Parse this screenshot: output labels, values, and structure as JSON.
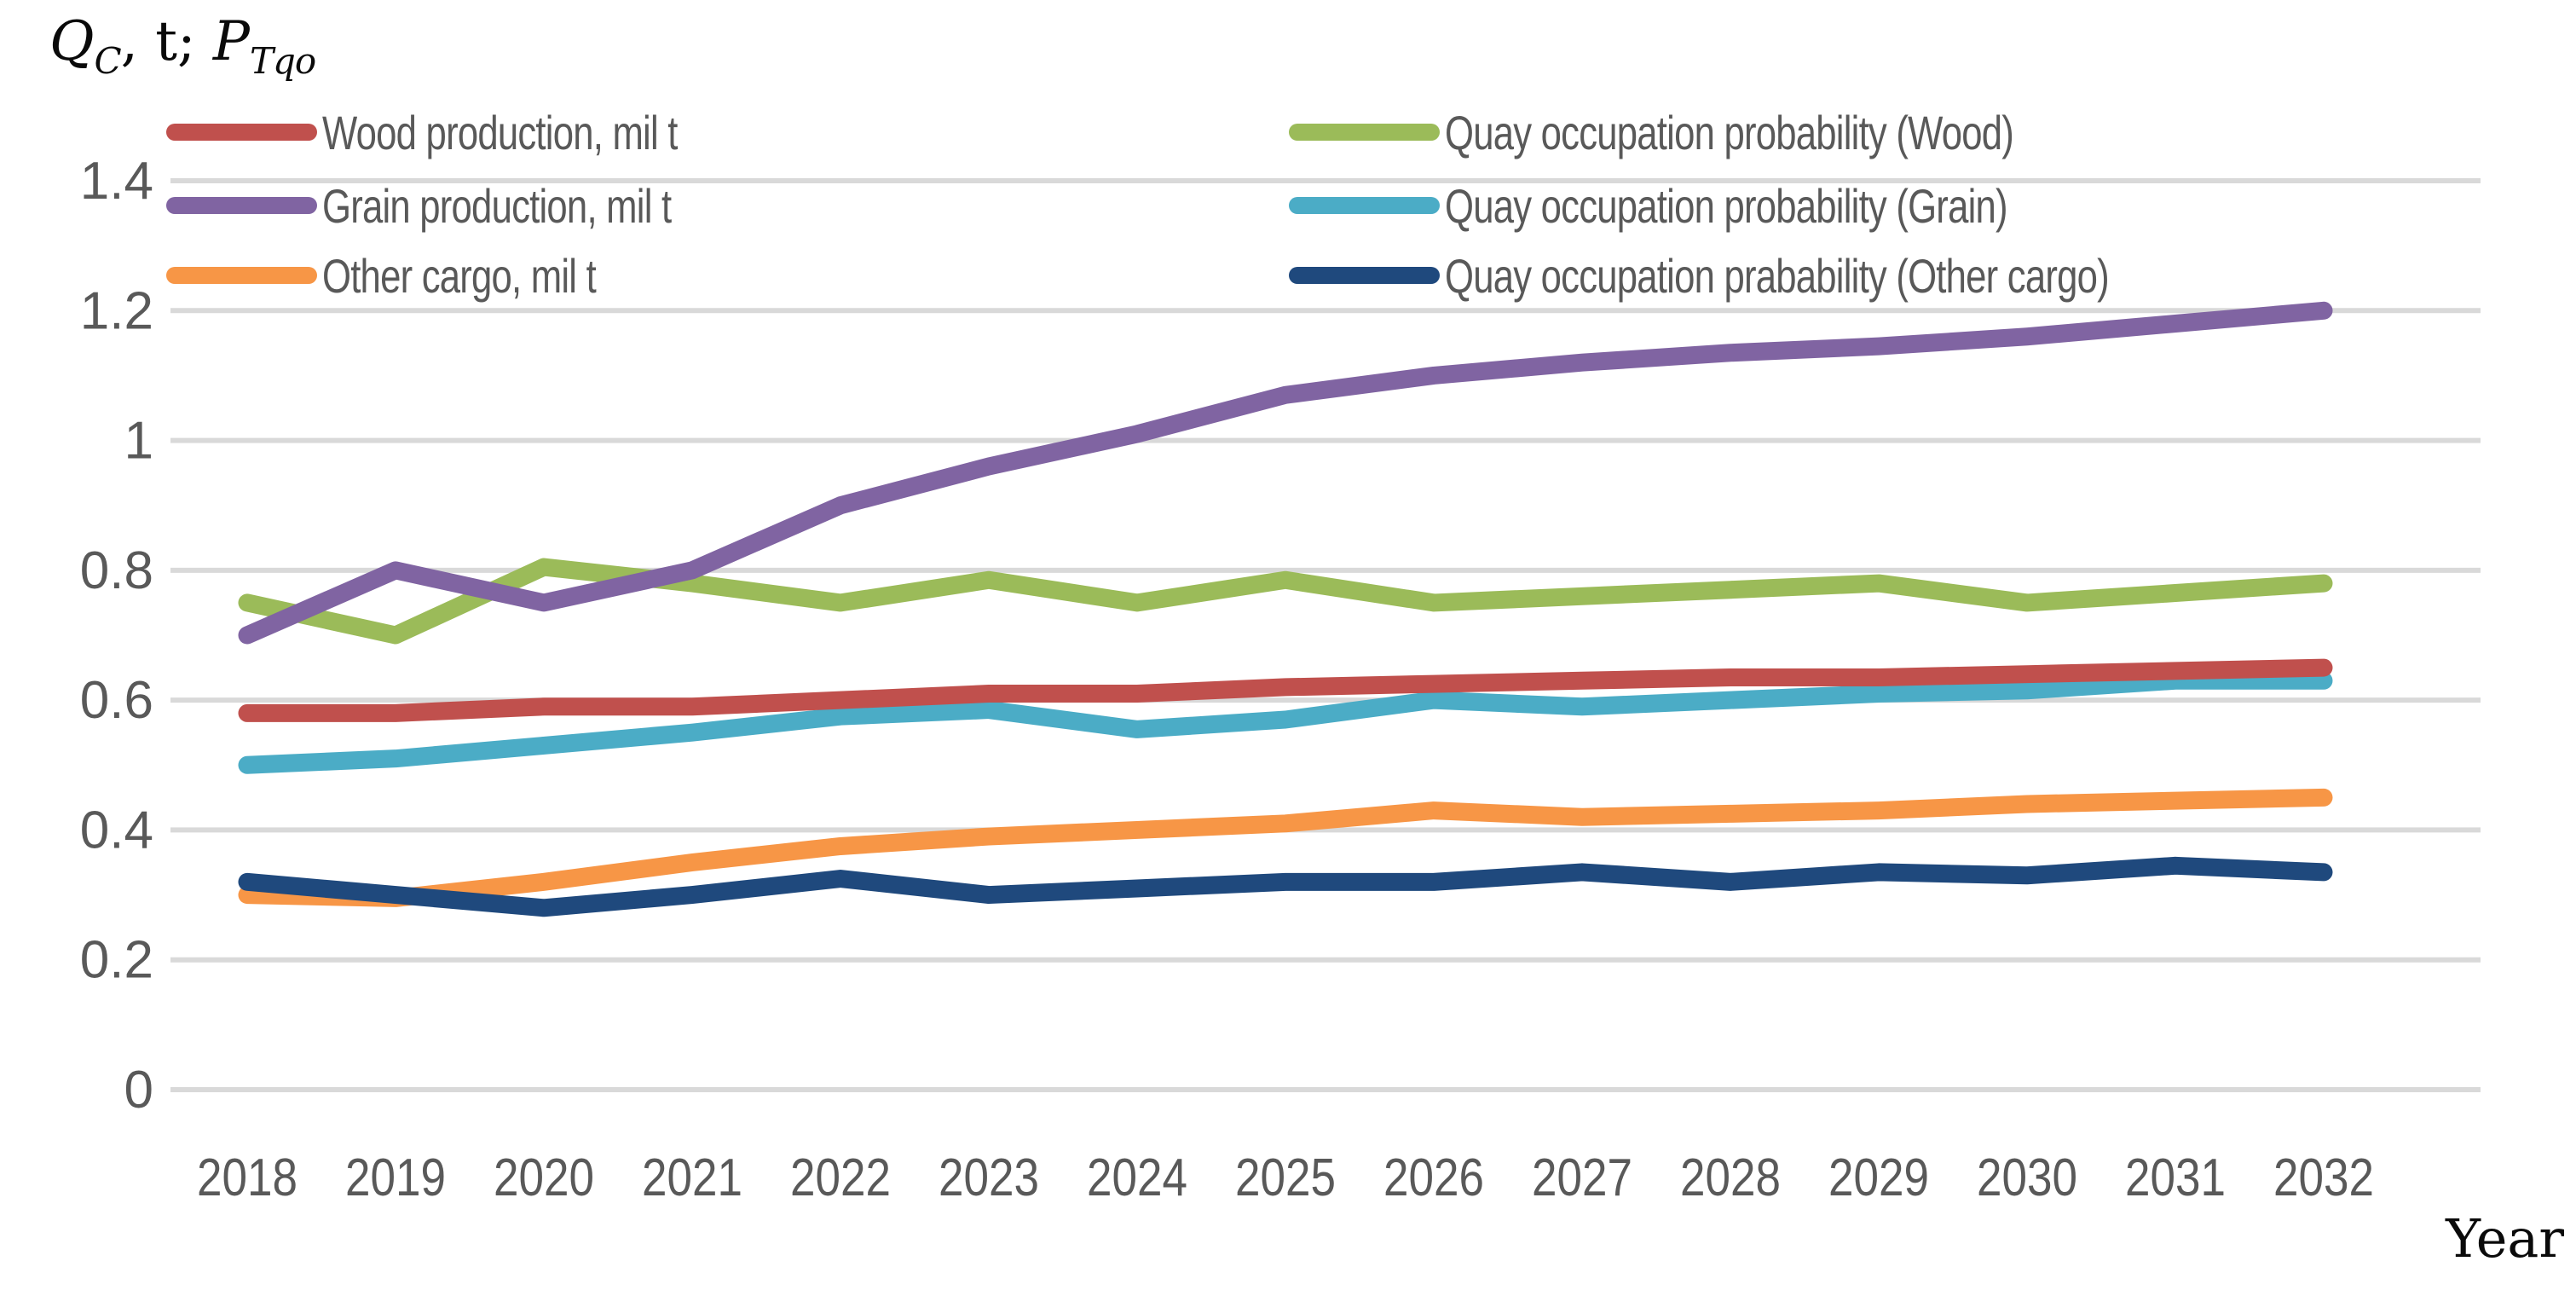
{
  "axis_title": {
    "q": "Q",
    "q_sub": "C",
    "separator": ", t; ",
    "p": "P",
    "p_sub": "Tqo"
  },
  "x_axis_label": "Year",
  "legend": {
    "position": "inside-top, two columns",
    "left_column": [
      0,
      1,
      2
    ],
    "right_column": [
      3,
      4,
      5
    ]
  },
  "chart_data": {
    "type": "line",
    "title": "",
    "xlabel": "Year",
    "ylabel": "Q_C, t; P_Tqo",
    "x": [
      2018,
      2019,
      2020,
      2021,
      2022,
      2023,
      2024,
      2025,
      2026,
      2027,
      2028,
      2029,
      2030,
      2031,
      2032
    ],
    "ylim": [
      0,
      1.4
    ],
    "yticks": [
      0,
      0.2,
      0.4,
      0.6,
      0.8,
      1,
      1.2,
      1.4
    ],
    "ytick_labels": [
      "0",
      "0.2",
      "0.4",
      "0.6",
      "0.8",
      "1",
      "1.2",
      "1.4"
    ],
    "grid": "horizontal",
    "gridline_color": "#d9d9d9",
    "tick_label_color": "#595959",
    "series": [
      {
        "name": "Wood production, mil t",
        "color": "#C0504D",
        "draw_order": 4,
        "values": [
          0.58,
          0.58,
          0.59,
          0.59,
          0.6,
          0.61,
          0.61,
          0.62,
          0.625,
          0.63,
          0.635,
          0.635,
          0.64,
          0.645,
          0.65
        ]
      },
      {
        "name": "Grain production, mil t",
        "color": "#8064A2",
        "draw_order": 6,
        "values": [
          0.7,
          0.8,
          0.75,
          0.8,
          0.9,
          0.96,
          1.01,
          1.07,
          1.1,
          1.12,
          1.135,
          1.145,
          1.16,
          1.18,
          1.2
        ]
      },
      {
        "name": "Other cargo, mil t",
        "color": "#F79646",
        "draw_order": 3,
        "values": [
          0.3,
          0.295,
          0.32,
          0.35,
          0.375,
          0.39,
          0.4,
          0.41,
          0.43,
          0.42,
          0.425,
          0.43,
          0.44,
          0.445,
          0.45
        ]
      },
      {
        "name": "Quay occupation probability (Wood)",
        "color": "#9BBB59",
        "draw_order": 1,
        "values": [
          0.75,
          0.7,
          0.805,
          0.78,
          0.75,
          0.785,
          0.75,
          0.785,
          0.75,
          0.76,
          0.77,
          0.78,
          0.75,
          0.765,
          0.78
        ]
      },
      {
        "name": "Quay occupation probability (Grain)",
        "color": "#4BACC6",
        "draw_order": 2,
        "values": [
          0.5,
          0.51,
          0.53,
          0.55,
          0.575,
          0.585,
          0.555,
          0.57,
          0.6,
          0.59,
          0.6,
          0.61,
          0.615,
          0.63,
          0.63
        ]
      },
      {
        "name": "Quay occupation prabability (Other cargo)",
        "color": "#1F497D",
        "draw_order": 5,
        "values": [
          0.32,
          0.3,
          0.28,
          0.3,
          0.325,
          0.3,
          0.31,
          0.32,
          0.32,
          0.335,
          0.32,
          0.335,
          0.33,
          0.345,
          0.335
        ]
      }
    ]
  }
}
